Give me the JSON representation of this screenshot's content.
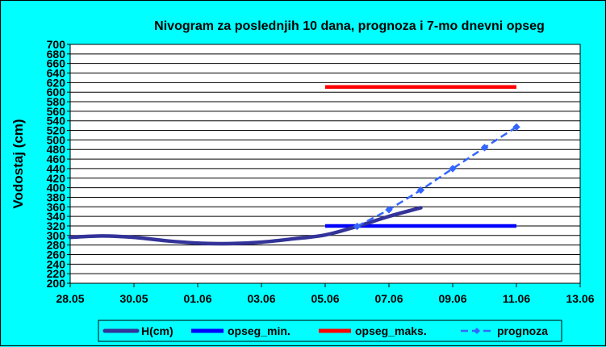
{
  "chart_data": {
    "type": "line",
    "title": "Nivogram za poslednjih 10 dana, prognoza i 7-mo dnevni opseg",
    "ylabel": "Vodostaj (cm)",
    "xlabel": "",
    "ylim": [
      200,
      700
    ],
    "ytick_step": 20,
    "x_ticks": [
      "28.05",
      "30.05",
      "01.06",
      "03.06",
      "05.06",
      "07.06",
      "09.06",
      "11.06",
      "13.06"
    ],
    "x_range_days": [
      0,
      16
    ],
    "grid": "horizontal",
    "legend_position": "bottom",
    "series": [
      {
        "name": "H(cm)",
        "color": "#333399",
        "style": "smooth-thick",
        "points": [
          [
            0,
            296
          ],
          [
            1,
            299
          ],
          [
            2,
            296
          ],
          [
            3,
            289
          ],
          [
            4,
            284
          ],
          [
            5,
            283
          ],
          [
            6,
            286
          ],
          [
            7,
            293
          ],
          [
            8,
            301
          ],
          [
            9,
            319
          ],
          [
            10,
            340
          ],
          [
            11,
            358
          ]
        ]
      },
      {
        "name": "opseg_min.",
        "color": "#0000ff",
        "style": "solid-thick",
        "points": [
          [
            8,
            320
          ],
          [
            14,
            320
          ]
        ]
      },
      {
        "name": "opseg_maks.",
        "color": "#ff0000",
        "style": "solid-thick",
        "points": [
          [
            8,
            611
          ],
          [
            14,
            611
          ]
        ]
      },
      {
        "name": "prognoza",
        "color": "#3366ff",
        "style": "dashed-diamond",
        "points": [
          [
            9,
            319
          ],
          [
            10,
            354
          ],
          [
            11,
            395
          ],
          [
            12,
            440
          ],
          [
            13,
            484
          ],
          [
            14,
            527
          ]
        ]
      }
    ]
  }
}
